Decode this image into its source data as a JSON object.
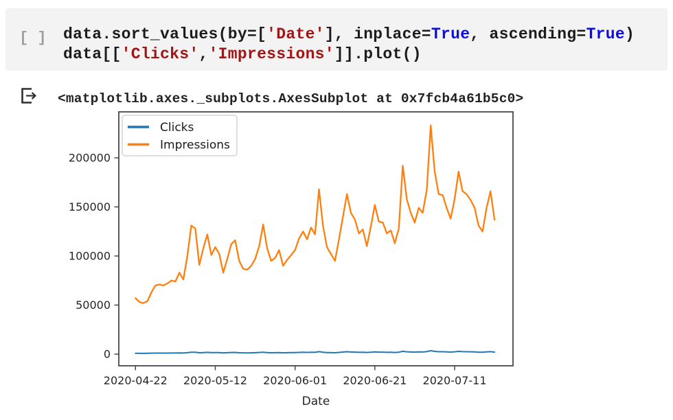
{
  "notebook": {
    "cell": {
      "run_placeholder": "[ ]",
      "code_lines": [
        [
          {
            "t": "data.sort_values(by=[",
            "c": "plain"
          },
          {
            "t": "'Date'",
            "c": "string"
          },
          {
            "t": "], inplace=",
            "c": "plain"
          },
          {
            "t": "True",
            "c": "keyword"
          },
          {
            "t": ", ascending=",
            "c": "plain"
          },
          {
            "t": "True",
            "c": "keyword"
          },
          {
            "t": ")",
            "c": "plain"
          }
        ],
        [
          {
            "t": "data[[",
            "c": "plain"
          },
          {
            "t": "'Clicks'",
            "c": "string"
          },
          {
            "t": ",",
            "c": "plain"
          },
          {
            "t": "'Impressions'",
            "c": "string"
          },
          {
            "t": "]].plot()",
            "c": "plain"
          }
        ]
      ]
    },
    "output": {
      "marker_icon": "output-bracket-arrow",
      "text": "<matplotlib.axes._subplots.AxesSubplot at 0x7fcb4a61b5c0>"
    }
  },
  "colors": {
    "cell_background": "#f3f3f3",
    "code_text": "#1c1c1c",
    "code_string": "#a31515",
    "code_keyword": "#0d0de0",
    "gutter_text": "#9e9e9e",
    "axis": "#3d3d3d",
    "tick_text": "#262626",
    "legend_border": "#cccccc",
    "clicks_line": "#1f77b4",
    "impressions_line": "#ff7f0e"
  },
  "chart_data": {
    "type": "line",
    "title": "",
    "xlabel": "Date",
    "ylabel": "",
    "grid": false,
    "legend_position": "upper left",
    "ylim": [
      -11650,
      244650
    ],
    "y_ticks": [
      0,
      50000,
      100000,
      150000,
      200000
    ],
    "y_tick_labels": [
      "0",
      "50000",
      "100000",
      "150000",
      "200000"
    ],
    "x_tick_labels": [
      "2020-04-22",
      "2020-05-12",
      "2020-06-01",
      "2020-06-21",
      "2020-07-11"
    ],
    "x_tick_day_offsets": [
      0,
      20,
      40,
      60,
      80
    ],
    "x": [
      "2020-04-22",
      "2020-04-23",
      "2020-04-24",
      "2020-04-25",
      "2020-04-26",
      "2020-04-27",
      "2020-04-28",
      "2020-04-29",
      "2020-04-30",
      "2020-05-01",
      "2020-05-02",
      "2020-05-03",
      "2020-05-04",
      "2020-05-05",
      "2020-05-06",
      "2020-05-07",
      "2020-05-08",
      "2020-05-09",
      "2020-05-10",
      "2020-05-11",
      "2020-05-12",
      "2020-05-13",
      "2020-05-14",
      "2020-05-15",
      "2020-05-16",
      "2020-05-17",
      "2020-05-18",
      "2020-05-19",
      "2020-05-20",
      "2020-05-21",
      "2020-05-22",
      "2020-05-23",
      "2020-05-24",
      "2020-05-25",
      "2020-05-26",
      "2020-05-27",
      "2020-05-28",
      "2020-05-29",
      "2020-05-30",
      "2020-05-31",
      "2020-06-01",
      "2020-06-02",
      "2020-06-03",
      "2020-06-04",
      "2020-06-05",
      "2020-06-06",
      "2020-06-07",
      "2020-06-08",
      "2020-06-09",
      "2020-06-10",
      "2020-06-11",
      "2020-06-12",
      "2020-06-13",
      "2020-06-14",
      "2020-06-15",
      "2020-06-16",
      "2020-06-17",
      "2020-06-18",
      "2020-06-19",
      "2020-06-20",
      "2020-06-21",
      "2020-06-22",
      "2020-06-23",
      "2020-06-24",
      "2020-06-25",
      "2020-06-26",
      "2020-06-27",
      "2020-06-28",
      "2020-06-29",
      "2020-06-30",
      "2020-07-01",
      "2020-07-02",
      "2020-07-03",
      "2020-07-04",
      "2020-07-05",
      "2020-07-06",
      "2020-07-07",
      "2020-07-08",
      "2020-07-09",
      "2020-07-10",
      "2020-07-11",
      "2020-07-12",
      "2020-07-13",
      "2020-07-14",
      "2020-07-15",
      "2020-07-16",
      "2020-07-17",
      "2020-07-18",
      "2020-07-19",
      "2020-07-20",
      "2020-07-21"
    ],
    "series": [
      {
        "name": "Clicks",
        "color": "#1f77b4",
        "values": [
          855,
          795,
          780,
          810,
          945,
          1050,
          1065,
          1050,
          1080,
          1125,
          1110,
          1245,
          1140,
          1500,
          1965,
          1920,
          1365,
          1620,
          1830,
          1515,
          1635,
          1530,
          1245,
          1455,
          1680,
          1740,
          1425,
          1305,
          1290,
          1350,
          1455,
          1650,
          1980,
          1620,
          1425,
          1470,
          1590,
          1350,
          1440,
          1515,
          1590,
          1770,
          1875,
          1755,
          1935,
          1830,
          2520,
          1965,
          1635,
          1530,
          1425,
          1755,
          2100,
          2445,
          2160,
          2055,
          1845,
          1905,
          1650,
          1950,
          2280,
          2025,
          2010,
          1845,
          1890,
          1695,
          1920,
          2880,
          2370,
          2160,
          2010,
          2235,
          2160,
          2505,
          3495,
          2790,
          2445,
          2430,
          2235,
          2070,
          2370,
          2790,
          2490,
          2445,
          2355,
          2235,
          1965,
          1875,
          2235,
          2490,
          2055
        ]
      },
      {
        "name": "Impressions",
        "color": "#ff7f0e",
        "values": [
          57000,
          53000,
          52000,
          54000,
          63000,
          70000,
          71000,
          70000,
          72000,
          75000,
          74000,
          83000,
          76000,
          100000,
          131000,
          128000,
          91000,
          108000,
          122000,
          101000,
          109000,
          102000,
          83000,
          97000,
          112000,
          116000,
          95000,
          87000,
          86000,
          90000,
          97000,
          110000,
          132000,
          108000,
          95000,
          98000,
          106000,
          90000,
          96000,
          101000,
          106000,
          118000,
          125000,
          117000,
          129000,
          122000,
          168000,
          131000,
          109000,
          102000,
          95000,
          117000,
          140000,
          163000,
          144000,
          137000,
          123000,
          127000,
          110000,
          130000,
          152000,
          135000,
          134000,
          123000,
          126000,
          113000,
          128000,
          192000,
          158000,
          144000,
          134000,
          149000,
          144000,
          167000,
          233000,
          186000,
          163000,
          162000,
          149000,
          138000,
          158000,
          186000,
          166000,
          163000,
          157000,
          149000,
          131000,
          125000,
          149000,
          166000,
          137000
        ]
      }
    ]
  }
}
